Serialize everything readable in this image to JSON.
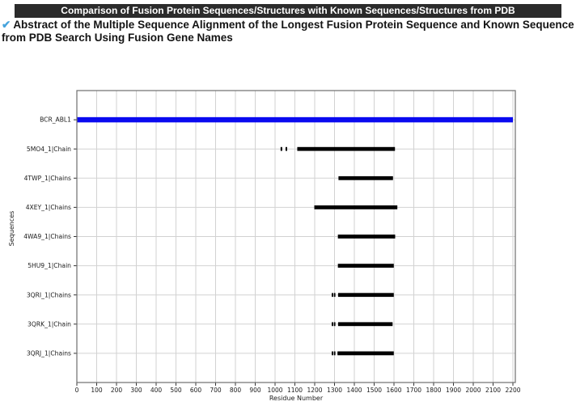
{
  "header": {
    "title": "Comparison of Fusion Protein Sequences/Structures with Known Sequences/Structures from PDB",
    "checkmark_icon": "✔",
    "subtitle_lines": [
      "Abstract of the Multiple Sequence Alignment of the Longest Fusion Protein Sequence and Known Sequence",
      "from PDB Search Using Fusion Gene Names"
    ]
  },
  "colors": {
    "title_bar_bg": "#2b2b2b",
    "title_text": "#ffffff",
    "checkmark": "#45a3dc",
    "highlight_bar": "#0a0af0",
    "sequence_bar": "#000000",
    "gridline": "#d2d2d2",
    "spine": "#6e6e6e",
    "tick": "#333333",
    "tick_label": "#1a1a1a"
  },
  "chart_data": {
    "type": "bar",
    "variant": "sequence-alignment-spans",
    "title": "",
    "xlabel": "Residue Number",
    "ylabel": "Sequences",
    "xlim": [
      0,
      2200
    ],
    "x_ticks": [
      0,
      100,
      200,
      300,
      400,
      500,
      600,
      700,
      800,
      900,
      1000,
      1100,
      1200,
      1300,
      1400,
      1500,
      1600,
      1700,
      1800,
      1900,
      2000,
      2100,
      2200
    ],
    "grid": true,
    "legend": false,
    "rows": [
      {
        "label": "BCR_ABL1",
        "color_key": "highlight_bar",
        "segments": [
          [
            0,
            2200
          ]
        ]
      },
      {
        "label": "5MO4_1|Chain",
        "color_key": "sequence_bar",
        "segments": [
          [
            1028,
            1036
          ],
          [
            1053,
            1061
          ],
          [
            1112,
            1605
          ]
        ]
      },
      {
        "label": "4TWP_1|Chains",
        "color_key": "sequence_bar",
        "segments": [
          [
            1320,
            1595
          ]
        ]
      },
      {
        "label": "4XEY_1|Chains",
        "color_key": "sequence_bar",
        "segments": [
          [
            1198,
            1617
          ]
        ]
      },
      {
        "label": "4WA9_1|Chains",
        "color_key": "sequence_bar",
        "segments": [
          [
            1317,
            1606
          ]
        ]
      },
      {
        "label": "5HU9_1|Chain",
        "color_key": "sequence_bar",
        "segments": [
          [
            1317,
            1599
          ]
        ]
      },
      {
        "label": "3QRI_1|Chains",
        "color_key": "sequence_bar",
        "segments": [
          [
            1286,
            1292
          ],
          [
            1297,
            1303
          ],
          [
            1318,
            1599
          ]
        ]
      },
      {
        "label": "3QRK_1|Chain",
        "color_key": "sequence_bar",
        "segments": [
          [
            1286,
            1292
          ],
          [
            1297,
            1303
          ],
          [
            1318,
            1593
          ]
        ]
      },
      {
        "label": "3QRJ_1|Chains",
        "color_key": "sequence_bar",
        "segments": [
          [
            1286,
            1292
          ],
          [
            1297,
            1303
          ],
          [
            1315,
            1599
          ]
        ]
      }
    ]
  }
}
